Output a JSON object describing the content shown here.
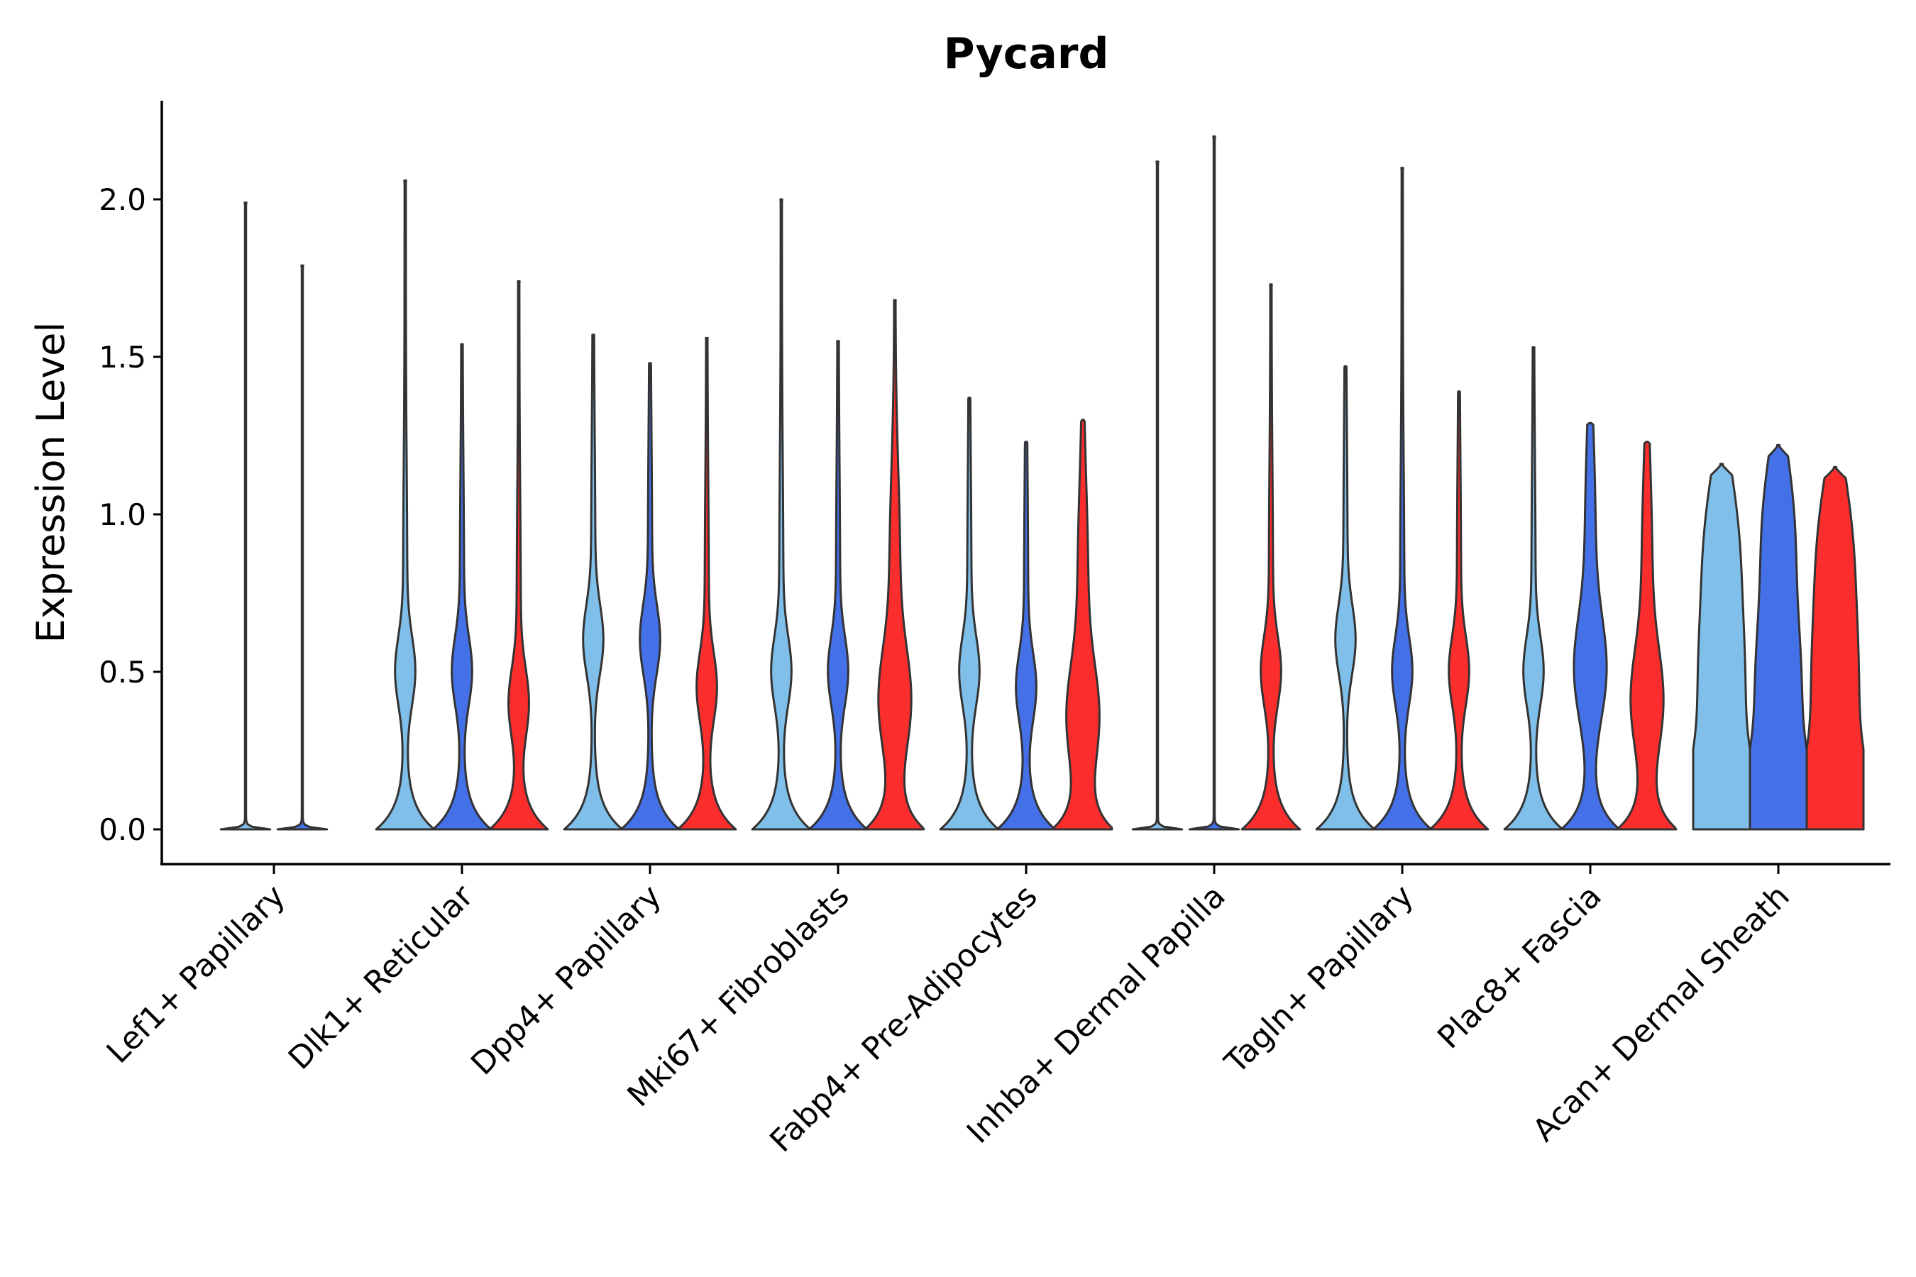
{
  "chart_data": {
    "type": "violin",
    "title": "Pycard",
    "xlabel": "",
    "ylabel": "Expression Level",
    "ylim": [
      -0.11,
      2.32
    ],
    "yticks": [
      0.0,
      0.5,
      1.0,
      1.5,
      2.0
    ],
    "ytick_labels": [
      "0.0",
      "0.5",
      "1.0",
      "1.5",
      "2.0"
    ],
    "series_colors": [
      "#7fbfea",
      "#4470e8",
      "#fc2d2d"
    ],
    "categories": [
      "Lef1+ Papillary",
      "Dlk1+ Reticular",
      "Dpp4+ Papillary",
      "Mki67+ Fibroblasts",
      "Fabp4+ Pre-Adipocytes",
      "Inhba+ Dermal Papilla",
      "Tagln+ Papillary",
      "Plac8+ Fascia",
      "Acan+ Dermal Sheath"
    ],
    "groups": [
      {
        "category": "Lef1+ Papillary",
        "violins": [
          {
            "max": 1.99,
            "profile": "flat"
          },
          {
            "max": 1.79,
            "profile": "flat"
          }
        ]
      },
      {
        "category": "Dlk1+ Reticular",
        "violins": [
          {
            "max": 2.06,
            "profile": "zero_peak_0.5"
          },
          {
            "max": 1.54,
            "profile": "zero_peak_0.5"
          },
          {
            "max": 1.74,
            "profile": "zero_peak_0.4"
          }
        ]
      },
      {
        "category": "Dpp4+ Papillary",
        "violins": [
          {
            "max": 1.57,
            "profile": "zero_peak_0.6"
          },
          {
            "max": 1.48,
            "profile": "zero_peak_0.6"
          },
          {
            "max": 1.56,
            "profile": "zero_peak_0.45"
          }
        ]
      },
      {
        "category": "Mki67+ Fibroblasts",
        "violins": [
          {
            "max": 2.0,
            "profile": "zero_peak_0.5"
          },
          {
            "max": 1.55,
            "profile": "zero_peak_0.5"
          },
          {
            "max": 1.68,
            "profile": "wide_0.4"
          }
        ]
      },
      {
        "category": "Fabp4+ Pre-Adipocytes",
        "violins": [
          {
            "max": 1.37,
            "profile": "zero_peak_0.5"
          },
          {
            "max": 1.23,
            "profile": "zero_peak_0.45"
          },
          {
            "max": 1.3,
            "profile": "wide_0.35"
          }
        ]
      },
      {
        "category": "Inhba+ Dermal Papilla",
        "violins": [
          {
            "max": 2.12,
            "profile": "flat"
          },
          {
            "max": 2.2,
            "profile": "flat"
          },
          {
            "max": 1.73,
            "profile": "zero_peak_0.5"
          }
        ]
      },
      {
        "category": "Tagln+ Papillary",
        "violins": [
          {
            "max": 1.47,
            "profile": "zero_peak_0.6"
          },
          {
            "max": 2.1,
            "profile": "zero_peak_0.5"
          },
          {
            "max": 1.39,
            "profile": "zero_peak_0.5"
          }
        ]
      },
      {
        "category": "Plac8+ Fascia",
        "violins": [
          {
            "max": 1.53,
            "profile": "zero_peak_0.5"
          },
          {
            "max": 1.29,
            "profile": "wide_0.5"
          },
          {
            "max": 1.23,
            "profile": "wide_0.4"
          }
        ]
      },
      {
        "category": "Acan+ Dermal Sheath",
        "violins": [
          {
            "max": 1.16,
            "profile": "full"
          },
          {
            "max": 1.22,
            "profile": "full"
          },
          {
            "max": 1.15,
            "profile": "full"
          }
        ]
      }
    ]
  }
}
